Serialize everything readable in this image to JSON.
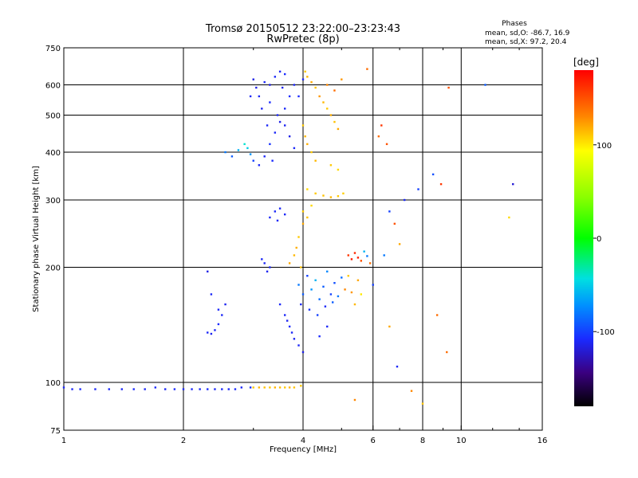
{
  "header": {
    "title": "Tromsø 20150512 23:22:00–23:23:43",
    "subtitle": "RwPretec (8p)",
    "phases_heading": "Phases",
    "phases_o": "mean, sd,O:  -86.7, 16.9",
    "phases_x": "mean, sd,X:  97.2, 20.4"
  },
  "colorbar": {
    "label": "[deg]",
    "ticks": [
      {
        "label": "100",
        "value": 100
      },
      {
        "label": "0",
        "value": 0
      },
      {
        "label": "-100",
        "value": -100
      }
    ],
    "range": [
      -180,
      180
    ]
  },
  "chart_data": {
    "type": "scatter",
    "xlabel": "Frequency [MHz]",
    "ylabel": "Stationary phase Virtual Height [km]",
    "xscale": "log",
    "yscale": "log",
    "xlim": [
      1,
      16
    ],
    "ylim": [
      75,
      750
    ],
    "xticks": [
      {
        "label": "1",
        "value": 1
      },
      {
        "label": "2",
        "value": 2
      },
      {
        "label": "4",
        "value": 4
      },
      {
        "label": "6",
        "value": 6
      },
      {
        "label": "8",
        "value": 8
      },
      {
        "label": "10",
        "value": 10
      },
      {
        "label": "16",
        "value": 16
      }
    ],
    "yticks": [
      {
        "label": "75",
        "value": 75
      },
      {
        "label": "100",
        "value": 100
      },
      {
        "label": "200",
        "value": 200
      },
      {
        "label": "300",
        "value": 300
      },
      {
        "label": "400",
        "value": 400
      },
      {
        "label": "500",
        "value": 500
      },
      {
        "label": "600",
        "value": 600
      },
      {
        "label": "750",
        "value": 750
      }
    ],
    "grid_x": [
      2,
      4,
      6,
      8,
      10
    ],
    "grid_y": [
      100,
      200,
      300,
      400,
      500,
      600
    ],
    "grid": true,
    "color_encoding": "phase [deg]",
    "series": [
      {
        "points": [
          [
            1.0,
            97,
            -110
          ],
          [
            1.05,
            96,
            -110
          ],
          [
            1.1,
            96,
            -108
          ],
          [
            1.2,
            96,
            -110
          ],
          [
            1.3,
            96,
            -109
          ],
          [
            1.4,
            96,
            -110
          ],
          [
            1.5,
            96,
            -108
          ],
          [
            1.6,
            96,
            -110
          ],
          [
            1.7,
            97,
            -109
          ],
          [
            1.8,
            96,
            -110
          ],
          [
            1.9,
            96,
            -108
          ],
          [
            2.0,
            96,
            -110
          ],
          [
            2.1,
            96,
            -109
          ],
          [
            2.2,
            96,
            -110
          ],
          [
            2.3,
            96,
            -108
          ],
          [
            2.4,
            96,
            -110
          ],
          [
            2.5,
            96,
            -109
          ],
          [
            2.6,
            96,
            -110
          ],
          [
            2.7,
            96,
            -108
          ],
          [
            2.8,
            97,
            -110
          ],
          [
            2.95,
            97,
            -105
          ]
        ]
      },
      {
        "points": [
          [
            3.0,
            97,
            110
          ],
          [
            3.1,
            97,
            115
          ],
          [
            3.2,
            97,
            112
          ],
          [
            3.3,
            97,
            110
          ],
          [
            3.4,
            97,
            116
          ],
          [
            3.5,
            97,
            113
          ],
          [
            3.6,
            97,
            110
          ],
          [
            3.7,
            97,
            115
          ],
          [
            3.8,
            97,
            112
          ],
          [
            3.95,
            98,
            110
          ]
        ]
      },
      {
        "points": [
          [
            2.3,
            135,
            -110
          ],
          [
            2.35,
            134,
            -112
          ],
          [
            2.4,
            137,
            -110
          ],
          [
            2.45,
            142,
            -108
          ],
          [
            2.5,
            150,
            -110
          ],
          [
            2.55,
            160,
            -112
          ],
          [
            2.3,
            195,
            -115
          ],
          [
            2.35,
            170,
            -110
          ],
          [
            2.45,
            155,
            -110
          ]
        ]
      },
      {
        "points": [
          [
            2.55,
            400,
            -80
          ],
          [
            2.65,
            390,
            -90
          ],
          [
            2.75,
            405,
            -60
          ],
          [
            2.85,
            420,
            -40
          ],
          [
            2.9,
            410,
            -50
          ],
          [
            2.95,
            395,
            -70
          ],
          [
            3.0,
            380,
            -100
          ],
          [
            3.1,
            370,
            -110
          ],
          [
            3.2,
            390,
            -110
          ],
          [
            3.3,
            420,
            -105
          ],
          [
            3.4,
            450,
            -110
          ],
          [
            3.5,
            480,
            -115
          ],
          [
            3.6,
            520,
            -110
          ],
          [
            3.7,
            560,
            -108
          ],
          [
            3.8,
            600,
            -110
          ],
          [
            3.3,
            600,
            -115
          ],
          [
            3.4,
            630,
            -110
          ],
          [
            3.5,
            650,
            -112
          ],
          [
            3.6,
            640,
            -108
          ],
          [
            3.2,
            610,
            -110
          ],
          [
            3.0,
            620,
            -115
          ],
          [
            3.1,
            560,
            -110
          ],
          [
            3.3,
            540,
            -108
          ],
          [
            3.45,
            500,
            -110
          ],
          [
            3.6,
            470,
            -112
          ],
          [
            3.7,
            440,
            -115
          ],
          [
            3.8,
            410,
            -110
          ],
          [
            3.9,
            560,
            -108
          ],
          [
            4.0,
            620,
            -110
          ],
          [
            3.55,
            590,
            -113
          ],
          [
            3.25,
            470,
            -110
          ],
          [
            3.15,
            520,
            -112
          ],
          [
            2.95,
            560,
            -110
          ],
          [
            3.05,
            590,
            -115
          ],
          [
            3.35,
            380,
            -108
          ]
        ]
      },
      {
        "points": [
          [
            4.05,
            650,
            110
          ],
          [
            4.1,
            630,
            115
          ],
          [
            4.2,
            610,
            120
          ],
          [
            4.3,
            590,
            112
          ],
          [
            4.4,
            560,
            125
          ],
          [
            4.5,
            540,
            115
          ],
          [
            4.6,
            520,
            110
          ],
          [
            4.7,
            500,
            118
          ],
          [
            4.8,
            480,
            112
          ],
          [
            4.9,
            460,
            120
          ],
          [
            4.0,
            470,
            110
          ],
          [
            4.05,
            440,
            115
          ],
          [
            4.1,
            420,
            118
          ],
          [
            4.2,
            400,
            110
          ],
          [
            4.3,
            380,
            115
          ],
          [
            4.6,
            600,
            130
          ],
          [
            4.8,
            580,
            140
          ],
          [
            5.0,
            620,
            125
          ],
          [
            4.7,
            370,
            110
          ],
          [
            4.9,
            360,
            105
          ]
        ]
      },
      {
        "points": [
          [
            4.1,
            320,
            105
          ],
          [
            4.3,
            312,
            110
          ],
          [
            4.5,
            308,
            112
          ],
          [
            4.7,
            305,
            115
          ],
          [
            4.9,
            307,
            110
          ],
          [
            5.05,
            312,
            108
          ],
          [
            4.2,
            290,
            105
          ],
          [
            4.0,
            280,
            110
          ],
          [
            4.1,
            270,
            112
          ]
        ]
      },
      {
        "points": [
          [
            3.7,
            205,
            120
          ],
          [
            3.8,
            215,
            115
          ],
          [
            3.9,
            240,
            110
          ],
          [
            4.0,
            260,
            120
          ],
          [
            3.85,
            225,
            118
          ],
          [
            3.95,
            200,
            112
          ]
        ]
      },
      {
        "points": [
          [
            3.9,
            180,
            -80
          ],
          [
            4.0,
            170,
            -90
          ],
          [
            4.1,
            190,
            -100
          ],
          [
            4.2,
            175,
            -70
          ],
          [
            4.3,
            185,
            -60
          ],
          [
            4.4,
            165,
            -85
          ],
          [
            4.5,
            178,
            -90
          ],
          [
            4.6,
            195,
            -75
          ],
          [
            4.7,
            170,
            -100
          ],
          [
            4.8,
            182,
            -95
          ],
          [
            4.9,
            168,
            -80
          ],
          [
            5.0,
            188,
            -85
          ],
          [
            3.95,
            160,
            -110
          ],
          [
            4.15,
            155,
            -105
          ],
          [
            4.35,
            150,
            -100
          ],
          [
            4.55,
            158,
            -110
          ],
          [
            4.75,
            162,
            -90
          ],
          [
            5.1,
            175,
            130
          ],
          [
            5.3,
            172,
            125
          ],
          [
            5.5,
            185,
            120
          ],
          [
            5.2,
            190,
            110
          ],
          [
            5.4,
            160,
            115
          ],
          [
            5.6,
            170,
            100
          ],
          [
            4.6,
            140,
            -110
          ],
          [
            4.4,
            132,
            -108
          ]
        ]
      },
      {
        "points": [
          [
            3.6,
            150,
            -110
          ],
          [
            3.7,
            140,
            -108
          ],
          [
            3.8,
            130,
            -112
          ],
          [
            3.9,
            125,
            -110
          ],
          [
            4.0,
            120,
            -115
          ],
          [
            3.5,
            160,
            -110
          ],
          [
            3.75,
            135,
            -110
          ],
          [
            3.65,
            145,
            -112
          ]
        ]
      },
      {
        "points": [
          [
            3.3,
            270,
            -110
          ],
          [
            3.4,
            280,
            -110
          ],
          [
            3.5,
            285,
            -110
          ],
          [
            3.6,
            275,
            -110
          ],
          [
            3.45,
            265,
            -110
          ],
          [
            3.2,
            205,
            -110
          ],
          [
            3.3,
            200,
            -110
          ],
          [
            3.25,
            195,
            -112
          ],
          [
            3.15,
            210,
            -110
          ]
        ]
      },
      {
        "points": [
          [
            5.2,
            215,
            160
          ],
          [
            5.3,
            210,
            170
          ],
          [
            5.4,
            218,
            165
          ],
          [
            5.5,
            212,
            170
          ],
          [
            5.6,
            208,
            150
          ],
          [
            5.7,
            220,
            -60
          ],
          [
            5.8,
            214,
            -80
          ],
          [
            5.9,
            205,
            140
          ]
        ]
      },
      {
        "points": [
          [
            5.8,
            660,
            140
          ],
          [
            6.2,
            440,
            140
          ],
          [
            6.3,
            470,
            160
          ],
          [
            6.5,
            420,
            150
          ],
          [
            6.6,
            280,
            -100
          ],
          [
            6.8,
            260,
            150
          ],
          [
            7.0,
            230,
            120
          ],
          [
            6.4,
            215,
            -80
          ],
          [
            7.2,
            300,
            -110
          ],
          [
            7.8,
            320,
            -100
          ],
          [
            8.5,
            350,
            -95
          ],
          [
            8.9,
            330,
            160
          ],
          [
            9.3,
            590,
            150
          ],
          [
            11.5,
            600,
            -90
          ],
          [
            13.5,
            330,
            -120
          ],
          [
            9.2,
            120,
            140
          ],
          [
            6.9,
            110,
            -110
          ],
          [
            7.5,
            95,
            130
          ],
          [
            8.0,
            88,
            110
          ],
          [
            13.2,
            270,
            105
          ],
          [
            6.0,
            180,
            -100
          ],
          [
            6.6,
            140,
            120
          ],
          [
            8.7,
            150,
            140
          ],
          [
            5.4,
            90,
            130
          ]
        ]
      }
    ]
  }
}
